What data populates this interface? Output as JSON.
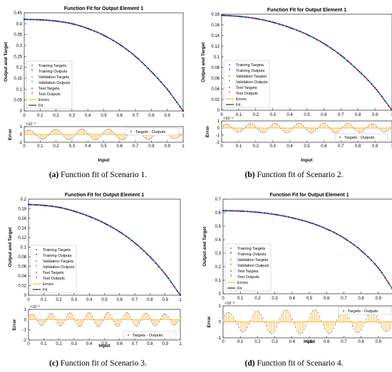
{
  "figure": {
    "captions": [
      {
        "tag": "(a)",
        "text": " Function fit of Scenario 1."
      },
      {
        "tag": "(b)",
        "text": " Function fit of Scenario 2."
      },
      {
        "tag": "(c)",
        "text": " Function fit of Scenario 3."
      },
      {
        "tag": "(d)",
        "text": " Function fit of Scenario 4."
      }
    ],
    "legend_entries": [
      "Training Targets",
      "Training Outputs",
      "Validation Targets",
      "Validation Outputs",
      "Test Targets",
      "Test Outputs",
      "Errors",
      "Fit"
    ],
    "error_legend": "Targets - Outputs",
    "colors": {
      "training": "#0000ff",
      "validation": "#00c000",
      "test": "#ff0000",
      "errors": "#ffa500",
      "fit": "#000000",
      "target_marker": "#555555"
    }
  },
  "chart_data": [
    {
      "type": "line",
      "title": "Function Fit for Output Element 1",
      "ylabel": "Output and Target",
      "xlim": [
        0,
        1
      ],
      "ylim": [
        0,
        0.45
      ],
      "x_ticks": [
        "0",
        "0.1",
        "0.2",
        "0.3",
        "0.4",
        "0.5",
        "0.6",
        "0.7",
        "0.8",
        "0.9",
        "1"
      ],
      "y_ticks": [
        "0",
        "0.05",
        "0.1",
        "0.15",
        "0.2",
        "0.25",
        "0.3",
        "0.35",
        "0.4",
        "0.45"
      ],
      "fit": {
        "x": [
          0,
          0.1,
          0.2,
          0.3,
          0.4,
          0.5,
          0.6,
          0.7,
          0.8,
          0.9,
          1.0
        ],
        "y": [
          0.42,
          0.418,
          0.412,
          0.4,
          0.378,
          0.347,
          0.305,
          0.25,
          0.18,
          0.099,
          0.0
        ]
      },
      "error_panel": {
        "ylabel": "Error",
        "xlabel": "Input",
        "exponent": "×10⁻⁴",
        "ylim": [
          -1,
          1
        ],
        "y_ticks": [
          "-1",
          "0",
          "1"
        ],
        "cycles": 6,
        "amplitude": 0.7,
        "legend_loc": "top"
      }
    },
    {
      "type": "line",
      "title": "Function Fit for Output Element 1",
      "ylabel": "Output and Target",
      "xlim": [
        0,
        1
      ],
      "ylim": [
        0,
        0.18
      ],
      "x_ticks": [
        "0",
        "0.1",
        "0.2",
        "0.3",
        "0.4",
        "0.5",
        "0.6",
        "0.7",
        "0.8",
        "0.9",
        "1"
      ],
      "y_ticks": [
        "0",
        "0.02",
        "0.04",
        "0.06",
        "0.08",
        "0.1",
        "0.12",
        "0.14",
        "0.16",
        "0.18"
      ],
      "fit": {
        "x": [
          0,
          0.1,
          0.2,
          0.3,
          0.4,
          0.5,
          0.6,
          0.7,
          0.8,
          0.9,
          1.0
        ],
        "y": [
          0.178,
          0.176,
          0.172,
          0.165,
          0.155,
          0.142,
          0.125,
          0.103,
          0.075,
          0.042,
          0.0
        ]
      },
      "error_panel": {
        "ylabel": "Error",
        "xlabel": "Input",
        "exponent": "×10⁻⁶",
        "ylim": [
          -2,
          1
        ],
        "y_ticks": [
          "-2",
          "-1",
          "0",
          "1"
        ],
        "cycles": 7,
        "amplitude": 0.7,
        "legend_loc": "bottom"
      }
    },
    {
      "type": "line",
      "title": "Function Fit for Output Element 1",
      "ylabel": "Output and Target",
      "xlim": [
        0,
        1
      ],
      "ylim": [
        0,
        0.2
      ],
      "x_ticks": [
        "0",
        "0.1",
        "0.2",
        "0.3",
        "0.4",
        "0.5",
        "0.6",
        "0.7",
        "0.8",
        "0.9",
        "1"
      ],
      "y_ticks": [
        "0",
        "0.02",
        "0.04",
        "0.06",
        "0.08",
        "0.1",
        "0.12",
        "0.14",
        "0.16",
        "0.18",
        "0.2"
      ],
      "fit": {
        "x": [
          0,
          0.1,
          0.2,
          0.3,
          0.4,
          0.5,
          0.6,
          0.7,
          0.8,
          0.9,
          1.0
        ],
        "y": [
          0.189,
          0.187,
          0.183,
          0.175,
          0.164,
          0.15,
          0.132,
          0.109,
          0.08,
          0.044,
          0.0
        ]
      },
      "error_panel": {
        "ylabel": "Error",
        "xlabel": "Input",
        "exponent": "×10⁻⁵",
        "ylim": [
          -2,
          1
        ],
        "y_ticks": [
          "-2",
          "-1",
          "0",
          "1"
        ],
        "cycles": 8,
        "amplitude": 0.7,
        "legend_loc": "bottom"
      }
    },
    {
      "type": "line",
      "title": "Function Fit for Output Element 1",
      "ylabel": "Output and Target",
      "xlim": [
        0,
        1
      ],
      "ylim": [
        0,
        0.7
      ],
      "x_ticks": [
        "0",
        "0.1",
        "0.2",
        "0.3",
        "0.4",
        "0.5",
        "0.6",
        "0.7",
        "0.8",
        "0.9",
        "1"
      ],
      "y_ticks": [
        "0",
        "0.1",
        "0.2",
        "0.3",
        "0.4",
        "0.5",
        "0.6",
        "0.7"
      ],
      "fit": {
        "x": [
          0,
          0.1,
          0.2,
          0.3,
          0.4,
          0.5,
          0.6,
          0.7,
          0.8,
          0.9,
          1.0
        ],
        "y": [
          0.615,
          0.612,
          0.603,
          0.587,
          0.562,
          0.528,
          0.48,
          0.413,
          0.32,
          0.19,
          0.0
        ]
      },
      "error_panel": {
        "ylabel": "Error",
        "xlabel": "Input",
        "exponent": "×10⁻⁶",
        "ylim": [
          -1,
          1
        ],
        "y_ticks": [
          "-1",
          "0",
          "1"
        ],
        "cycles": 6,
        "amplitude": 0.75,
        "legend_loc": "top"
      }
    }
  ]
}
